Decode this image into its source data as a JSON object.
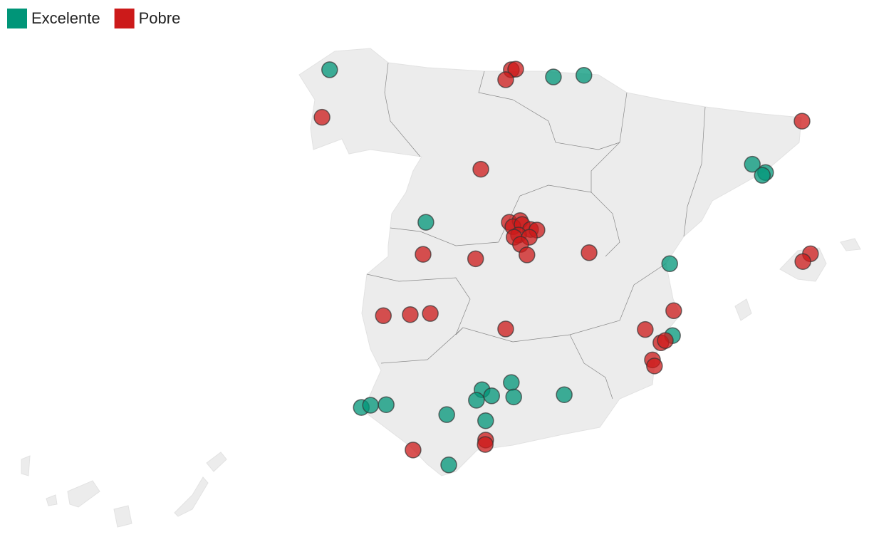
{
  "legend": [
    {
      "label": "Excelente",
      "color": "#009578"
    },
    {
      "label": "Pobre",
      "color": "#cc1a1a"
    }
  ],
  "points": [
    {
      "lon": -8.54,
      "lat": 43.44,
      "category": 0
    },
    {
      "lon": -2.96,
      "lat": 43.31,
      "category": 0
    },
    {
      "lon": -2.2,
      "lat": 43.34,
      "category": 0
    },
    {
      "lon": -6.14,
      "lat": 40.68,
      "category": 0
    },
    {
      "lon": 2.0,
      "lat": 41.73,
      "category": 0
    },
    {
      "lon": 2.33,
      "lat": 41.58,
      "category": 0
    },
    {
      "lon": 2.25,
      "lat": 41.53,
      "category": 0
    },
    {
      "lon": -0.06,
      "lat": 39.93,
      "category": 0
    },
    {
      "lon": 0.01,
      "lat": 38.63,
      "category": 0
    },
    {
      "lon": -4.01,
      "lat": 37.78,
      "category": 0
    },
    {
      "lon": -4.74,
      "lat": 37.65,
      "category": 0
    },
    {
      "lon": -4.5,
      "lat": 37.54,
      "category": 0
    },
    {
      "lon": -4.88,
      "lat": 37.46,
      "category": 0
    },
    {
      "lon": -3.95,
      "lat": 37.52,
      "category": 0
    },
    {
      "lon": -2.69,
      "lat": 37.56,
      "category": 0
    },
    {
      "lon": -7.75,
      "lat": 37.33,
      "category": 0
    },
    {
      "lon": -7.52,
      "lat": 37.37,
      "category": 0
    },
    {
      "lon": -7.13,
      "lat": 37.38,
      "category": 0
    },
    {
      "lon": -5.62,
      "lat": 37.2,
      "category": 0
    },
    {
      "lon": -4.65,
      "lat": 37.09,
      "category": 0
    },
    {
      "lon": -5.57,
      "lat": 36.29,
      "category": 0
    },
    {
      "lon": -8.73,
      "lat": 42.58,
      "category": 1
    },
    {
      "lon": -4.01,
      "lat": 43.44,
      "category": 1
    },
    {
      "lon": -3.9,
      "lat": 43.45,
      "category": 1
    },
    {
      "lon": -4.15,
      "lat": 43.26,
      "category": 1
    },
    {
      "lon": 3.24,
      "lat": 42.51,
      "category": 1
    },
    {
      "lon": -4.77,
      "lat": 41.64,
      "category": 1
    },
    {
      "lon": -4.06,
      "lat": 40.68,
      "category": 1
    },
    {
      "lon": -3.79,
      "lat": 40.71,
      "category": 1
    },
    {
      "lon": -3.97,
      "lat": 40.6,
      "category": 1
    },
    {
      "lon": -3.74,
      "lat": 40.64,
      "category": 1
    },
    {
      "lon": -3.53,
      "lat": 40.55,
      "category": 1
    },
    {
      "lon": -3.37,
      "lat": 40.54,
      "category": 1
    },
    {
      "lon": -3.83,
      "lat": 40.45,
      "category": 1
    },
    {
      "lon": -3.94,
      "lat": 40.41,
      "category": 1
    },
    {
      "lon": -3.56,
      "lat": 40.41,
      "category": 1
    },
    {
      "lon": -3.78,
      "lat": 40.28,
      "category": 1
    },
    {
      "lon": -3.62,
      "lat": 40.09,
      "category": 1
    },
    {
      "lon": -6.21,
      "lat": 40.1,
      "category": 1
    },
    {
      "lon": -4.9,
      "lat": 40.02,
      "category": 1
    },
    {
      "lon": -2.07,
      "lat": 40.13,
      "category": 1
    },
    {
      "lon": 3.45,
      "lat": 40.11,
      "category": 1
    },
    {
      "lon": 3.26,
      "lat": 39.97,
      "category": 1
    },
    {
      "lon": -7.2,
      "lat": 38.99,
      "category": 1
    },
    {
      "lon": -6.53,
      "lat": 39.01,
      "category": 1
    },
    {
      "lon": -6.03,
      "lat": 39.03,
      "category": 1
    },
    {
      "lon": -4.15,
      "lat": 38.75,
      "category": 1
    },
    {
      "lon": 0.04,
      "lat": 39.08,
      "category": 1
    },
    {
      "lon": -0.67,
      "lat": 38.74,
      "category": 1
    },
    {
      "lon": -0.28,
      "lat": 38.5,
      "category": 1
    },
    {
      "lon": -0.17,
      "lat": 38.54,
      "category": 1
    },
    {
      "lon": -0.49,
      "lat": 38.19,
      "category": 1
    },
    {
      "lon": -0.44,
      "lat": 38.08,
      "category": 1
    },
    {
      "lon": -4.65,
      "lat": 36.74,
      "category": 1
    },
    {
      "lon": -4.66,
      "lat": 36.66,
      "category": 1
    },
    {
      "lon": -6.46,
      "lat": 36.56,
      "category": 1
    }
  ]
}
